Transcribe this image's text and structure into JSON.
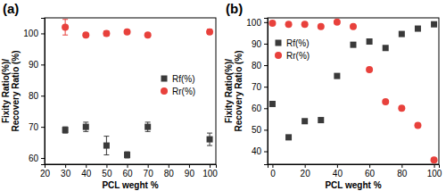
{
  "chart_data": [
    {
      "type": "scatter",
      "title": "(a)",
      "x_label": "PCL weght %",
      "y_label": [
        "Fixity Ratio(%)/",
        "Recovery Ratio (%)"
      ],
      "x": [
        30,
        40,
        50,
        60,
        70,
        100
      ],
      "xlim": [
        20,
        103
      ],
      "xticks": [
        20,
        30,
        40,
        50,
        60,
        70,
        80,
        90,
        100
      ],
      "ylim": [
        58,
        105
      ],
      "yticks": [
        60,
        70,
        80,
        90,
        100
      ],
      "grid": false,
      "legend": "center right",
      "series": [
        {
          "name": "Rf(%)",
          "color": "#3a3a3a",
          "marker": "square",
          "values": [
            69,
            70,
            64,
            61,
            70,
            66
          ],
          "errors": [
            1,
            1.5,
            3,
            1,
            1.5,
            2
          ]
        },
        {
          "name": "Rr(%)",
          "color": "#e8413c",
          "marker": "circle",
          "values": [
            102,
            99.5,
            100,
            100.5,
            99.5,
            100.5
          ],
          "errors": [
            2.5,
            0.5,
            0.8,
            0.5,
            0.4,
            0.8
          ]
        }
      ]
    },
    {
      "type": "scatter",
      "title": "(b)",
      "x_label": "PCL weght %",
      "y_label": [
        "Fixity Ratio(%)/",
        "Recovery Ratio (%)"
      ],
      "x": [
        0,
        10,
        20,
        30,
        40,
        50,
        60,
        70,
        80,
        90,
        100
      ],
      "xlim": [
        -3,
        103
      ],
      "xticks": [
        0,
        20,
        40,
        60,
        80,
        100
      ],
      "ylim": [
        34,
        102
      ],
      "yticks": [
        40,
        50,
        60,
        70,
        80,
        90,
        100
      ],
      "grid": false,
      "legend": "upper left",
      "series": [
        {
          "name": "Rf(%)",
          "color": "#3a3a3a",
          "marker": "square",
          "values": [
            62,
            46.5,
            54,
            54.5,
            75,
            89.5,
            91,
            88,
            94.5,
            97,
            99
          ]
        },
        {
          "name": "Rr(%)",
          "color": "#e8413c",
          "marker": "circle",
          "values": [
            99.5,
            99,
            99,
            98,
            100,
            98,
            78,
            63,
            60,
            52,
            36
          ]
        }
      ]
    }
  ]
}
